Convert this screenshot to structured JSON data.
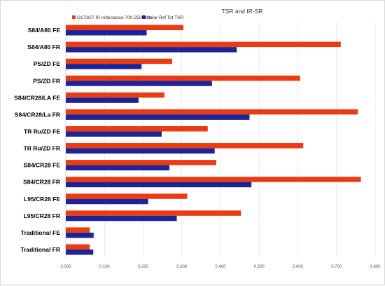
{
  "chart_data": {
    "type": "bar",
    "orientation": "horizontal",
    "title": "TSR and  IR-SR",
    "categories": [
      "S84/A80 FE",
      "S84/A80 FR",
      "PS/ZD FE",
      "PS/ZD FR",
      "S84/CR28/LA FE",
      "S84/CR28/La FR",
      "TR Ru/ZD FE",
      "TR Ru/ZD FR",
      "S84/CR28 FE",
      "S84/CR28 FR",
      "L95/CR28 FE",
      "L95/CR28 FR",
      "Traditional FE",
      "Traditional FR"
    ],
    "series": [
      {
        "name": "G173GT IR reflectance 700-2500 nm",
        "color": "#ea3b15",
        "values": [
          0.304,
          0.711,
          0.275,
          0.606,
          0.255,
          0.755,
          0.367,
          0.614,
          0.389,
          0.763,
          0.314,
          0.453,
          0.062,
          0.062
        ]
      },
      {
        "name": "Solar Ref Tot TSR",
        "color": "#1d2596",
        "values": [
          0.209,
          0.442,
          0.196,
          0.378,
          0.188,
          0.475,
          0.248,
          0.385,
          0.268,
          0.48,
          0.213,
          0.287,
          0.072,
          0.071
        ]
      }
    ],
    "xlim": [
      0,
      0.8
    ],
    "xticks": [
      "0.000",
      "0.100",
      "0.200",
      "0.300",
      "0.400",
      "0.500",
      "0.600",
      "0.700",
      "0.800"
    ],
    "grid": true,
    "legend_position": "top-left"
  }
}
